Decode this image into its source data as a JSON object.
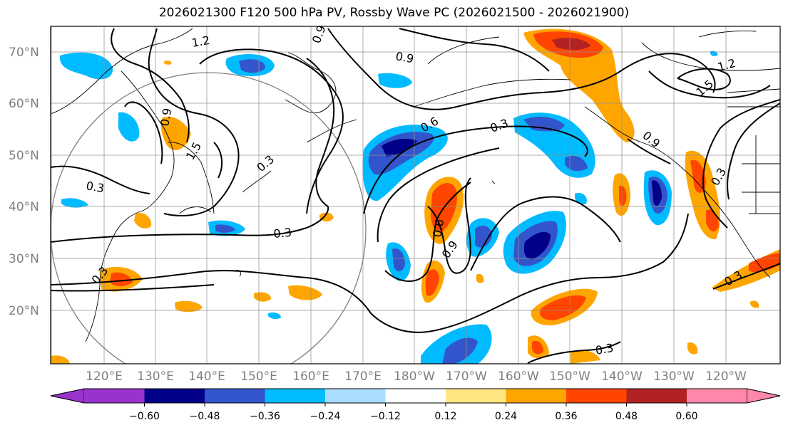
{
  "title": "2026021300 F120 500 hPa PV, Rossby Wave PC (2026021500 - 2026021900)",
  "latitude_labels": [
    "70°N",
    "60°N",
    "50°N",
    "40°N",
    "30°N",
    "20°N"
  ],
  "longitude_labels": [
    "120°E",
    "130°E",
    "140°E",
    "150°E",
    "160°E",
    "170°E",
    "180°W",
    "170°W",
    "160°W",
    "150°W",
    "140°W",
    "130°W",
    "120°W"
  ],
  "contour_labels": [
    "1.2",
    "0.9",
    "0.9",
    "0.6",
    "0.3",
    "0.3",
    "0.3",
    "0.3",
    "0.3",
    "0.6",
    "0.9",
    "0.3",
    "0.9",
    "1.2",
    "1.5",
    "0.3",
    "1.5",
    "0.3",
    "0.9"
  ],
  "colorbar": {
    "ticks": [
      "−0.60",
      "−0.48",
      "−0.36",
      "−0.24",
      "−0.12",
      "0.12",
      "0.24",
      "0.36",
      "0.48",
      "0.60"
    ],
    "colors": [
      "#9933cc",
      "#000088",
      "#3355cc",
      "#00bbff",
      "#aaddff",
      "#ffffff",
      "#ffe680",
      "#ffa500",
      "#ff4500",
      "#b22222",
      "#ff88aa"
    ]
  }
}
